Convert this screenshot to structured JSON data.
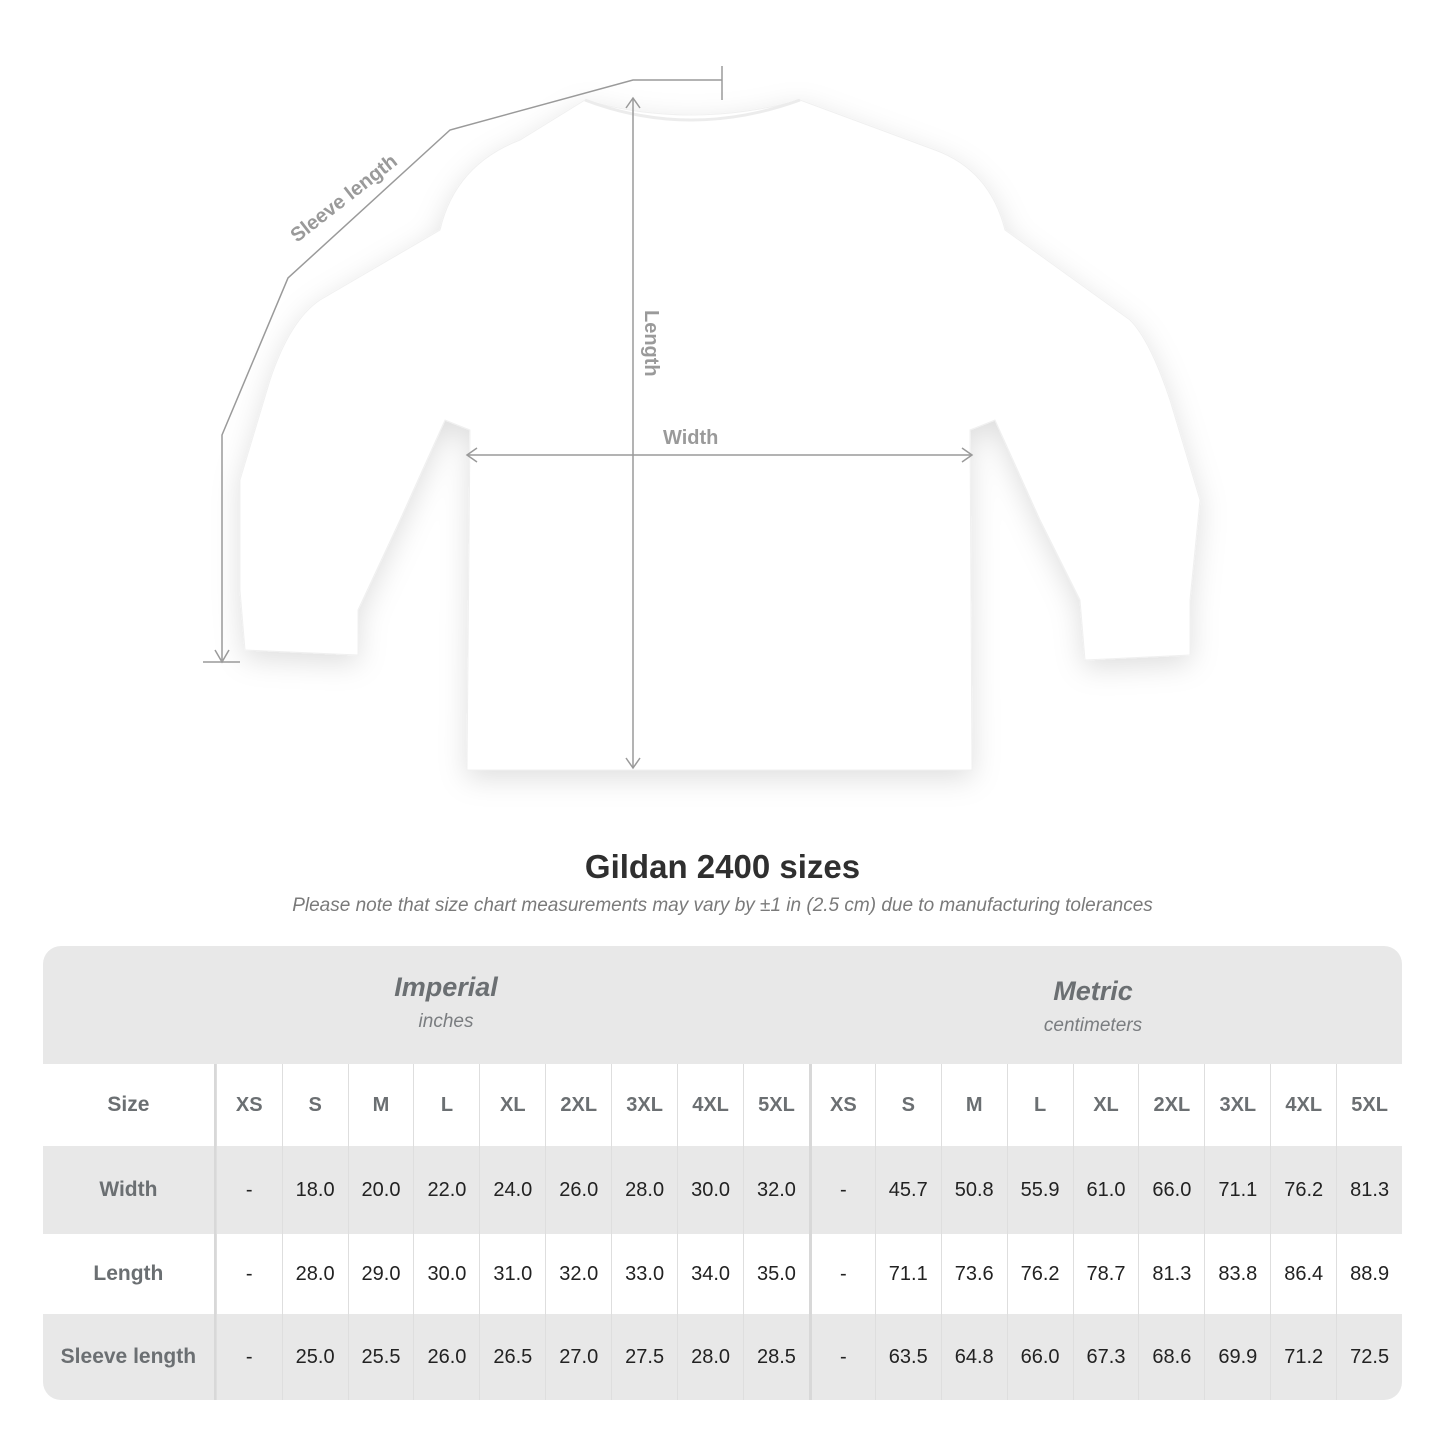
{
  "diagram": {
    "labels": {
      "sleeve_length": "Sleeve length",
      "length": "Length",
      "width": "Width"
    },
    "line_color": "#9a9a9a"
  },
  "title": "Gildan 2400 sizes",
  "subtitle": "Please note that size chart measurements may vary by ±1 in (2.5 cm) due to manufacturing tolerances",
  "table": {
    "imperial": {
      "name": "Imperial",
      "unit": "inches"
    },
    "metric": {
      "name": "Metric",
      "unit": "centimeters"
    },
    "size_label": "Size",
    "sizes": [
      "XS",
      "S",
      "M",
      "L",
      "XL",
      "2XL",
      "3XL",
      "4XL",
      "5XL"
    ],
    "rows": [
      {
        "label": "Width",
        "imperial": [
          "-",
          "18.0",
          "20.0",
          "22.0",
          "24.0",
          "26.0",
          "28.0",
          "30.0",
          "32.0"
        ],
        "metric": [
          "-",
          "45.7",
          "50.8",
          "55.9",
          "61.0",
          "66.0",
          "71.1",
          "76.2",
          "81.3"
        ]
      },
      {
        "label": "Length",
        "imperial": [
          "-",
          "28.0",
          "29.0",
          "30.0",
          "31.0",
          "32.0",
          "33.0",
          "34.0",
          "35.0"
        ],
        "metric": [
          "-",
          "71.1",
          "73.6",
          "76.2",
          "78.7",
          "81.3",
          "83.8",
          "86.4",
          "88.9"
        ]
      },
      {
        "label": "Sleeve length",
        "imperial": [
          "-",
          "25.0",
          "25.5",
          "26.0",
          "26.5",
          "27.0",
          "27.5",
          "28.0",
          "28.5"
        ],
        "metric": [
          "-",
          "63.5",
          "64.8",
          "66.0",
          "67.3",
          "68.6",
          "69.9",
          "71.2",
          "72.5"
        ]
      }
    ]
  }
}
